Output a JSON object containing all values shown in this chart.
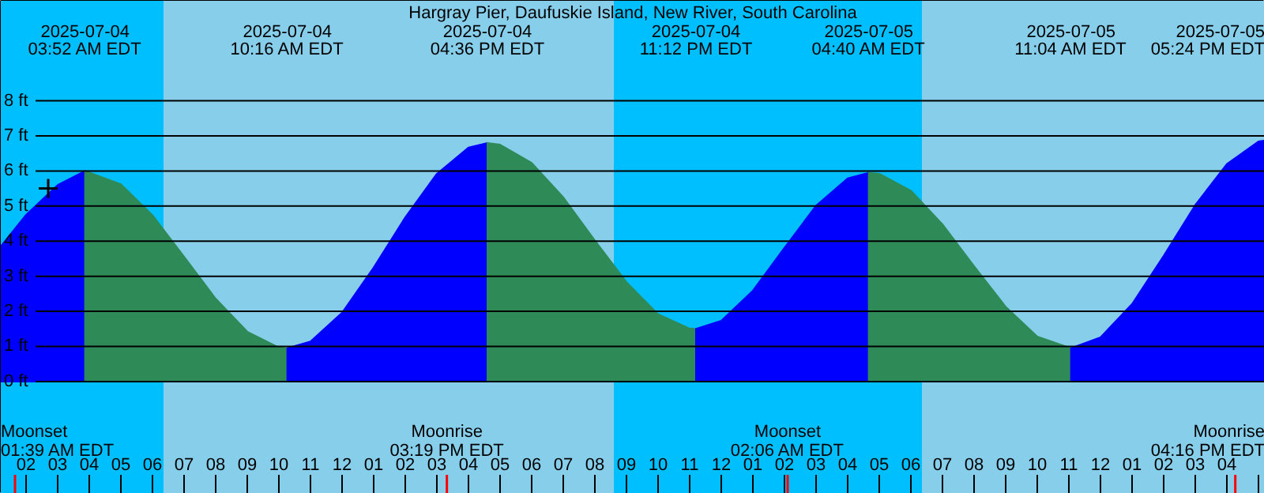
{
  "chart_data": {
    "type": "area",
    "title": "Hargray Pier, Daufuskie Island, New River, South Carolina",
    "series": [
      {
        "color": "#0000ff",
        "x": [
          "2025-07-04T01:12",
          "2025-07-04T02:00",
          "2025-07-04T03:00",
          "2025-07-04T03:52"
        ],
        "values": [
          3.85,
          4.75,
          5.6,
          6.0
        ]
      },
      {
        "color": "#2e8b57",
        "x": [
          "2025-07-04T03:52",
          "2025-07-04T05:00",
          "2025-07-04T06:00",
          "2025-07-04T07:00",
          "2025-07-04T08:00",
          "2025-07-04T09:00",
          "2025-07-04T10:00",
          "2025-07-04T10:16"
        ],
        "values": [
          6.0,
          5.62,
          4.74,
          3.56,
          2.36,
          1.42,
          0.97,
          0.95
        ]
      },
      {
        "color": "#0000ff",
        "x": [
          "2025-07-04T10:16",
          "2025-07-04T11:00",
          "2025-07-04T12:00",
          "2025-07-04T13:00",
          "2025-07-04T14:00",
          "2025-07-04T15:00",
          "2025-07-04T16:00",
          "2025-07-04T16:36"
        ],
        "values": [
          0.95,
          1.14,
          1.96,
          3.25,
          4.68,
          5.92,
          6.67,
          6.8
        ]
      },
      {
        "color": "#2e8b57",
        "x": [
          "2025-07-04T16:36",
          "2025-07-04T17:00",
          "2025-07-04T18:00",
          "2025-07-04T19:00",
          "2025-07-04T20:00",
          "2025-07-04T21:00",
          "2025-07-04T22:00",
          "2025-07-04T23:00",
          "2025-07-04T23:12"
        ],
        "values": [
          6.8,
          6.75,
          6.23,
          5.25,
          4.02,
          2.83,
          1.92,
          1.51,
          1.5
        ]
      },
      {
        "color": "#0000ff",
        "x": [
          "2025-07-04T23:12",
          "2025-07-05T00:00",
          "2025-07-05T01:00",
          "2025-07-05T02:00",
          "2025-07-05T03:00",
          "2025-07-05T04:00",
          "2025-07-05T04:40"
        ],
        "values": [
          1.5,
          1.73,
          2.59,
          3.81,
          5.01,
          5.79,
          5.95
        ]
      },
      {
        "color": "#2e8b57",
        "x": [
          "2025-07-05T04:40",
          "2025-07-05T05:00",
          "2025-07-05T06:00",
          "2025-07-05T07:00",
          "2025-07-05T08:00",
          "2025-07-05T09:00",
          "2025-07-05T10:00",
          "2025-07-05T11:04"
        ],
        "values": [
          5.95,
          5.92,
          5.44,
          4.48,
          3.29,
          2.13,
          1.28,
          0.95
        ]
      },
      {
        "color": "#0000ff",
        "x": [
          "2025-07-05T11:04",
          "2025-07-05T12:00",
          "2025-07-05T13:00",
          "2025-07-05T14:00",
          "2025-07-05T15:00",
          "2025-07-05T16:00",
          "2025-07-05T17:00",
          "2025-07-05T17:12"
        ],
        "values": [
          0.95,
          1.26,
          2.21,
          3.58,
          5.03,
          6.2,
          6.84,
          6.87
        ]
      },
      {
        "type": "scatter",
        "marker": "cross",
        "color": "#000000",
        "x": [
          "2025-07-04T02:42"
        ],
        "values": [
          5.5
        ]
      }
    ],
    "xlim": [
      "2025-07-04T01:12",
      "2025-07-05T17:12"
    ],
    "ylim": [
      -3.2,
      10.85
    ],
    "xticks": [
      {
        "value": "2025-07-04T02:00",
        "label": "02"
      },
      {
        "value": "2025-07-04T03:00",
        "label": "03"
      },
      {
        "value": "2025-07-04T04:00",
        "label": "04"
      },
      {
        "value": "2025-07-04T05:00",
        "label": "05"
      },
      {
        "value": "2025-07-04T06:00",
        "label": "06"
      },
      {
        "value": "2025-07-04T07:00",
        "label": "07"
      },
      {
        "value": "2025-07-04T08:00",
        "label": "08"
      },
      {
        "value": "2025-07-04T09:00",
        "label": "09"
      },
      {
        "value": "2025-07-04T10:00",
        "label": "10"
      },
      {
        "value": "2025-07-04T11:00",
        "label": "11"
      },
      {
        "value": "2025-07-04T12:00",
        "label": "12"
      },
      {
        "value": "2025-07-04T13:00",
        "label": "01"
      },
      {
        "value": "2025-07-04T14:00",
        "label": "02"
      },
      {
        "value": "2025-07-04T15:00",
        "label": "03"
      },
      {
        "value": "2025-07-04T16:00",
        "label": "04"
      },
      {
        "value": "2025-07-04T17:00",
        "label": "05"
      },
      {
        "value": "2025-07-04T18:00",
        "label": "06"
      },
      {
        "value": "2025-07-04T19:00",
        "label": "07"
      },
      {
        "value": "2025-07-04T20:00",
        "label": "08"
      },
      {
        "value": "2025-07-04T21:00",
        "label": "09"
      },
      {
        "value": "2025-07-04T22:00",
        "label": "10"
      },
      {
        "value": "2025-07-04T23:00",
        "label": "11"
      },
      {
        "value": "2025-07-05T00:00",
        "label": "12"
      },
      {
        "value": "2025-07-05T01:00",
        "label": "01"
      },
      {
        "value": "2025-07-05T02:00",
        "label": "02"
      },
      {
        "value": "2025-07-05T03:00",
        "label": "03"
      },
      {
        "value": "2025-07-05T04:00",
        "label": "04"
      },
      {
        "value": "2025-07-05T05:00",
        "label": "05"
      },
      {
        "value": "2025-07-05T06:00",
        "label": "06"
      },
      {
        "value": "2025-07-05T07:00",
        "label": "07"
      },
      {
        "value": "2025-07-05T08:00",
        "label": "08"
      },
      {
        "value": "2025-07-05T09:00",
        "label": "09"
      },
      {
        "value": "2025-07-05T10:00",
        "label": "10"
      },
      {
        "value": "2025-07-05T11:00",
        "label": "11"
      },
      {
        "value": "2025-07-05T12:00",
        "label": "12"
      },
      {
        "value": "2025-07-05T13:00",
        "label": "01"
      },
      {
        "value": "2025-07-05T14:00",
        "label": "02"
      },
      {
        "value": "2025-07-05T15:00",
        "label": "03"
      },
      {
        "value": "2025-07-05T16:00",
        "label": "04"
      },
      {
        "value": "2025-07-05T17:00",
        "label": null
      }
    ],
    "yticks": [
      {
        "value": 0,
        "label": "0 ft"
      },
      {
        "value": 1,
        "label": "1 ft"
      },
      {
        "value": 2,
        "label": "2 ft"
      },
      {
        "value": 3,
        "label": "3 ft"
      },
      {
        "value": 4,
        "label": "4 ft"
      },
      {
        "value": 5,
        "label": "5 ft"
      },
      {
        "value": 6,
        "label": "6 ft"
      },
      {
        "value": 7,
        "label": "7 ft"
      },
      {
        "value": 8,
        "label": "8 ft"
      }
    ],
    "grid": "y",
    "bands": [
      {
        "axis": "x",
        "from": "2025-07-04T01:12",
        "to": "2025-07-04T06:21",
        "color": "#00bfff"
      },
      {
        "axis": "x",
        "from": "2025-07-04T06:21",
        "to": "2025-07-04T20:36",
        "color": "#87ceeb"
      },
      {
        "axis": "x",
        "from": "2025-07-04T20:36",
        "to": "2025-07-05T06:21",
        "color": "#00bfff"
      },
      {
        "axis": "x",
        "from": "2025-07-05T06:21",
        "to": "2025-07-05T17:12",
        "color": "#87ceeb"
      }
    ],
    "annotations": [
      "2025-07-04\n03:52 AM EDT",
      "2025-07-04\n10:16 AM EDT",
      "2025-07-04\n04:36 PM EDT",
      "2025-07-04\n11:12 PM EDT",
      "2025-07-05\n04:40 AM EDT",
      "2025-07-05\n11:04 AM EDT",
      "2025-07-05\n05:24 PM EDT"
    ],
    "ref_lines": [
      {
        "axis": "x",
        "value": "2025-07-04T01:39",
        "label": "Moonset\n01:39 AM EDT",
        "color": "#ff0000"
      },
      {
        "axis": "x",
        "value": "2025-07-04T15:19",
        "label": "Moonrise\n03:19 PM EDT",
        "color": "#ff0000"
      },
      {
        "axis": "x",
        "value": "2025-07-05T02:06",
        "label": "Moonset\n02:06 AM EDT",
        "color": "#ff0000"
      },
      {
        "axis": "x",
        "value": "2025-07-05T16:16",
        "label": "Moonrise\n04:16 PM EDT",
        "color": "#ff0000"
      }
    ]
  }
}
